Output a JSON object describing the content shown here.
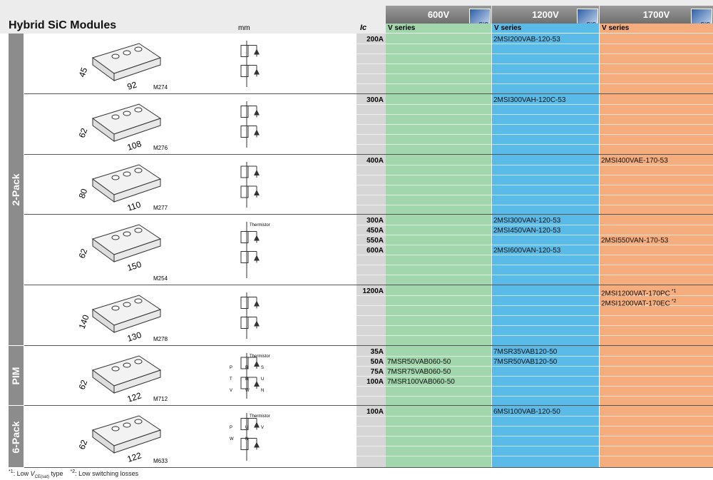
{
  "header": {
    "title": "Hybrid SiC Modules",
    "mm": "mm",
    "ic": "Ic",
    "logo": "SiC",
    "voltages": [
      {
        "voltage": "600V",
        "series": "V series"
      },
      {
        "voltage": "1200V",
        "series": "V series"
      },
      {
        "voltage": "1700V",
        "series": "V series"
      }
    ]
  },
  "groups": [
    {
      "label": "2-Pack",
      "rows": [
        {
          "module": "M274",
          "dims": [
            "45",
            "92"
          ],
          "currents": [
            {
              "ic": "200A",
              "parts": [
                null,
                "2MSI200VAB-120-53",
                null
              ]
            }
          ]
        },
        {
          "module": "M276",
          "dims": [
            "62",
            "108"
          ],
          "currents": [
            {
              "ic": "300A",
              "parts": [
                null,
                "2MSI300VAH-120C-53",
                null
              ]
            }
          ]
        },
        {
          "module": "M277",
          "dims": [
            "80",
            "110"
          ],
          "currents": [
            {
              "ic": "400A",
              "parts": [
                null,
                null,
                "2MSI400VAE-170-53"
              ]
            }
          ]
        },
        {
          "module": "M254",
          "dims": [
            "62",
            "150"
          ],
          "diagram_labels": [
            "Thermistor"
          ],
          "currents": [
            {
              "ic": "300A",
              "parts": [
                null,
                "2MSI300VAN-120-53",
                null
              ]
            },
            {
              "ic": "450A",
              "parts": [
                null,
                "2MSI450VAN-120-53",
                null
              ]
            },
            {
              "ic": "550A",
              "parts": [
                null,
                null,
                "2MSI550VAN-170-53"
              ]
            },
            {
              "ic": "600A",
              "parts": [
                null,
                "2MSI600VAN-120-53",
                null
              ]
            }
          ]
        },
        {
          "module": "M278",
          "dims": [
            "140",
            "130"
          ],
          "currents": [
            {
              "ic": "1200A",
              "parts": [
                null,
                null,
                {
                  "part": "2MSI1200VAT-170PC",
                  "note": "*1"
                }
              ]
            },
            {
              "ic": null,
              "parts": [
                null,
                null,
                {
                  "part": "2MSI1200VAT-170EC",
                  "note": "*2"
                }
              ]
            }
          ]
        }
      ]
    },
    {
      "label": "PIM",
      "rows": [
        {
          "module": "M712",
          "dims": [
            "62",
            "122"
          ],
          "diagram_labels": [
            "Thermistor",
            "P",
            "R",
            "S",
            "T",
            "B",
            "U",
            "V",
            "W",
            "N"
          ],
          "currents": [
            {
              "ic": "35A",
              "parts": [
                null,
                "7MSR35VAB120-50",
                null
              ]
            },
            {
              "ic": "50A",
              "parts": [
                "7MSR50VAB060-50",
                "7MSR50VAB120-50",
                null
              ]
            },
            {
              "ic": "75A",
              "parts": [
                "7MSR75VAB060-50",
                null,
                null
              ]
            },
            {
              "ic": "100A",
              "parts": [
                "7MSR100VAB060-50",
                null,
                null
              ]
            }
          ]
        }
      ]
    },
    {
      "label": "6-Pack",
      "rows": [
        {
          "module": "M633",
          "dims": [
            "62",
            "122"
          ],
          "diagram_labels": [
            "Thermistor",
            "P",
            "U",
            "V",
            "W",
            "N"
          ],
          "currents": [
            {
              "ic": "100A",
              "parts": [
                null,
                "6MSI100VAB-120-50",
                null
              ]
            }
          ]
        }
      ]
    }
  ],
  "footnotes": [
    {
      "mark": "*1",
      "before": ": Low ",
      "symbol": "V",
      "subscript": "CE(sat)",
      "after": " type"
    },
    {
      "mark": "*2",
      "text": ": Low switching losses"
    }
  ]
}
